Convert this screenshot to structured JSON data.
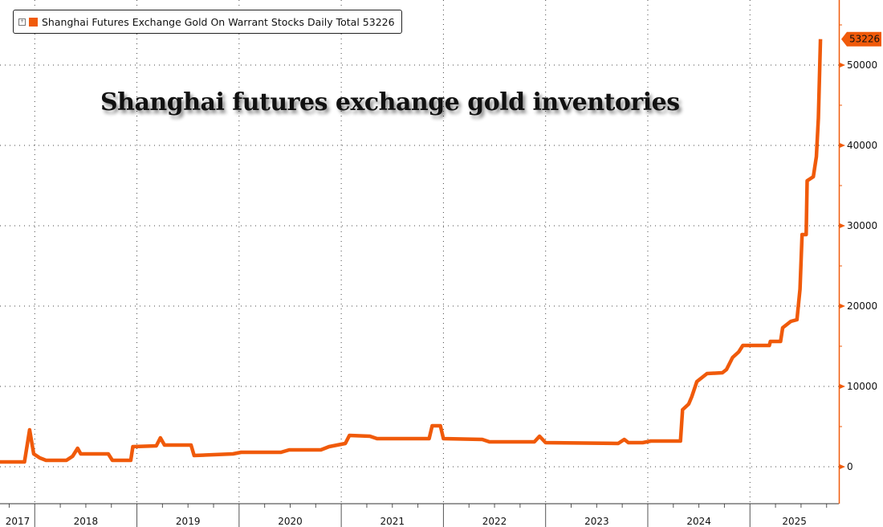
{
  "chart_data": {
    "type": "line",
    "title": "Shanghai futures exchange gold inventories",
    "legend": {
      "position": "top-left",
      "entries": [
        {
          "name": "Shanghai Futures Exchange Gold On Warrant Stocks Daily Total",
          "last_value": "53226"
        }
      ]
    },
    "series": [
      {
        "name": "Shanghai Futures Exchange Gold On Warrant Stocks Daily Total",
        "color": "#f05a0a",
        "points": [
          [
            2017.66,
            600
          ],
          [
            2017.9,
            600
          ],
          [
            2017.95,
            4600
          ],
          [
            2017.99,
            1600
          ],
          [
            2018.05,
            1100
          ],
          [
            2018.11,
            800
          ],
          [
            2018.31,
            800
          ],
          [
            2018.37,
            1300
          ],
          [
            2018.42,
            2300
          ],
          [
            2018.45,
            1600
          ],
          [
            2018.72,
            1600
          ],
          [
            2018.76,
            800
          ],
          [
            2018.94,
            800
          ],
          [
            2018.96,
            2500
          ],
          [
            2019.19,
            2600
          ],
          [
            2019.23,
            3600
          ],
          [
            2019.27,
            2700
          ],
          [
            2019.53,
            2700
          ],
          [
            2019.56,
            1400
          ],
          [
            2019.94,
            1600
          ],
          [
            2020.02,
            1800
          ],
          [
            2020.41,
            1800
          ],
          [
            2020.49,
            2100
          ],
          [
            2020.8,
            2100
          ],
          [
            2020.88,
            2500
          ],
          [
            2021.04,
            2900
          ],
          [
            2021.08,
            3900
          ],
          [
            2021.28,
            3800
          ],
          [
            2021.35,
            3500
          ],
          [
            2021.86,
            3500
          ],
          [
            2021.89,
            5100
          ],
          [
            2021.97,
            5100
          ],
          [
            2022.0,
            3500
          ],
          [
            2022.38,
            3400
          ],
          [
            2022.45,
            3100
          ],
          [
            2022.89,
            3100
          ],
          [
            2022.94,
            3800
          ],
          [
            2023.0,
            3000
          ],
          [
            2023.71,
            2900
          ],
          [
            2023.77,
            3400
          ],
          [
            2023.81,
            3000
          ],
          [
            2023.95,
            3000
          ],
          [
            2024.03,
            3200
          ],
          [
            2024.32,
            3200
          ],
          [
            2024.34,
            7100
          ],
          [
            2024.4,
            7800
          ],
          [
            2024.43,
            8700
          ],
          [
            2024.48,
            10600
          ],
          [
            2024.58,
            11600
          ],
          [
            2024.73,
            11700
          ],
          [
            2024.77,
            12100
          ],
          [
            2024.83,
            13600
          ],
          [
            2024.89,
            14300
          ],
          [
            2024.93,
            15100
          ],
          [
            2025.19,
            15100
          ],
          [
            2025.2,
            15600
          ],
          [
            2025.3,
            15600
          ],
          [
            2025.32,
            17300
          ],
          [
            2025.4,
            18100
          ],
          [
            2025.46,
            18300
          ],
          [
            2025.49,
            22100
          ],
          [
            2025.51,
            28900
          ],
          [
            2025.55,
            28900
          ],
          [
            2025.56,
            35600
          ],
          [
            2025.62,
            36100
          ],
          [
            2025.65,
            38600
          ],
          [
            2025.67,
            43400
          ],
          [
            2025.69,
            53226
          ]
        ]
      }
    ],
    "last_value_label": "53226",
    "y_axis": {
      "position": "right",
      "ticks": [
        "0",
        "10000",
        "20000",
        "30000",
        "40000",
        "50000"
      ],
      "tick_values": [
        0,
        10000,
        20000,
        30000,
        40000,
        50000
      ],
      "ylim": [
        -4600,
        58100
      ]
    },
    "x_axis": {
      "ticks": [
        "2017",
        "2018",
        "2019",
        "2020",
        "2021",
        "2022",
        "2023",
        "2024",
        "2025"
      ],
      "xlim": [
        2017.66,
        2025.87
      ]
    },
    "grid": true,
    "xlabel": "",
    "ylabel": ""
  }
}
